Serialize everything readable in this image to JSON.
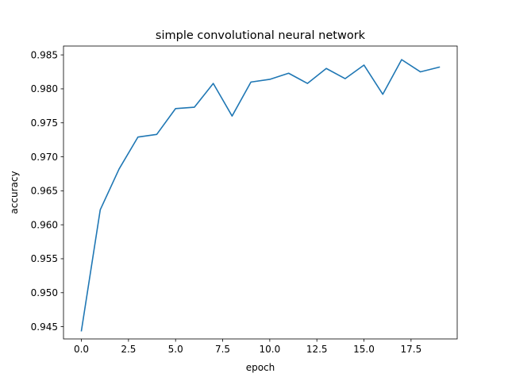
{
  "chart_data": {
    "type": "line",
    "title": "simple convolutional neural network",
    "xlabel": "epoch",
    "ylabel": "accuracy",
    "xlim": [
      -0.95,
      19.95
    ],
    "ylim": [
      0.9432,
      0.9863
    ],
    "xticks": [
      0.0,
      2.5,
      5.0,
      7.5,
      10.0,
      12.5,
      15.0,
      17.5
    ],
    "xtick_labels": [
      "0.0",
      "2.5",
      "5.0",
      "7.5",
      "10.0",
      "12.5",
      "15.0",
      "17.5"
    ],
    "yticks": [
      0.945,
      0.95,
      0.955,
      0.96,
      0.965,
      0.97,
      0.975,
      0.98,
      0.985
    ],
    "ytick_labels": [
      "0.945",
      "0.950",
      "0.955",
      "0.960",
      "0.965",
      "0.970",
      "0.975",
      "0.980",
      "0.985"
    ],
    "grid": false,
    "legend": "none",
    "series": [
      {
        "color": "#1f77b4",
        "x": [
          0,
          1,
          2,
          3,
          4,
          5,
          6,
          7,
          8,
          9,
          10,
          11,
          12,
          13,
          14,
          15,
          16,
          17,
          18,
          19
        ],
        "y": [
          0.9444,
          0.9622,
          0.9682,
          0.9729,
          0.9733,
          0.9771,
          0.9773,
          0.9808,
          0.976,
          0.981,
          0.9814,
          0.9823,
          0.9808,
          0.983,
          0.9815,
          0.9835,
          0.9792,
          0.9843,
          0.9825,
          0.9832
        ]
      }
    ]
  }
}
